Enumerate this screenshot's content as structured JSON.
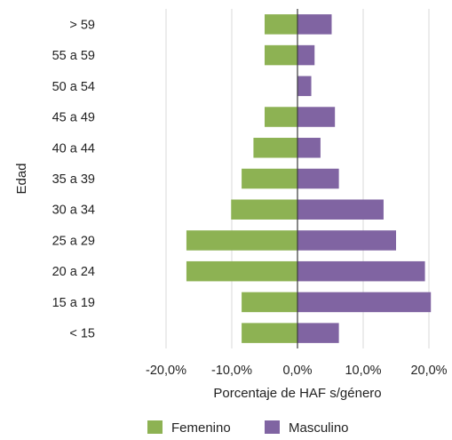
{
  "chart_data": {
    "type": "bar",
    "orientation": "horizontal",
    "stacking": "diverging",
    "categories": [
      "> 59",
      "55 a 59",
      "50 a 54",
      "45 a 49",
      "40 a 44",
      "35 a 39",
      "30 a 34",
      "25 a 29",
      "20 a 24",
      "15 a 19",
      "< 15"
    ],
    "series": [
      {
        "name": "Femenino",
        "color": "#8db253",
        "values": [
          -5.0,
          -5.0,
          0.0,
          -5.0,
          -6.7,
          -8.5,
          -10.1,
          -16.9,
          -16.9,
          -8.5,
          -8.5
        ]
      },
      {
        "name": "Masculino",
        "color": "#8064a2",
        "values": [
          5.2,
          2.6,
          2.1,
          5.7,
          3.5,
          6.3,
          13.1,
          15.0,
          19.4,
          20.3,
          6.3
        ]
      }
    ],
    "xticks": [
      "-20,0%",
      "-10,0%",
      "0,0%",
      "10,0%",
      "20,0%"
    ],
    "xlim": [
      -20,
      20
    ],
    "xlabel": "Porcentaje de HAF s/género",
    "ylabel": "Edad",
    "grid": "vertical",
    "legend_position": "bottom"
  }
}
